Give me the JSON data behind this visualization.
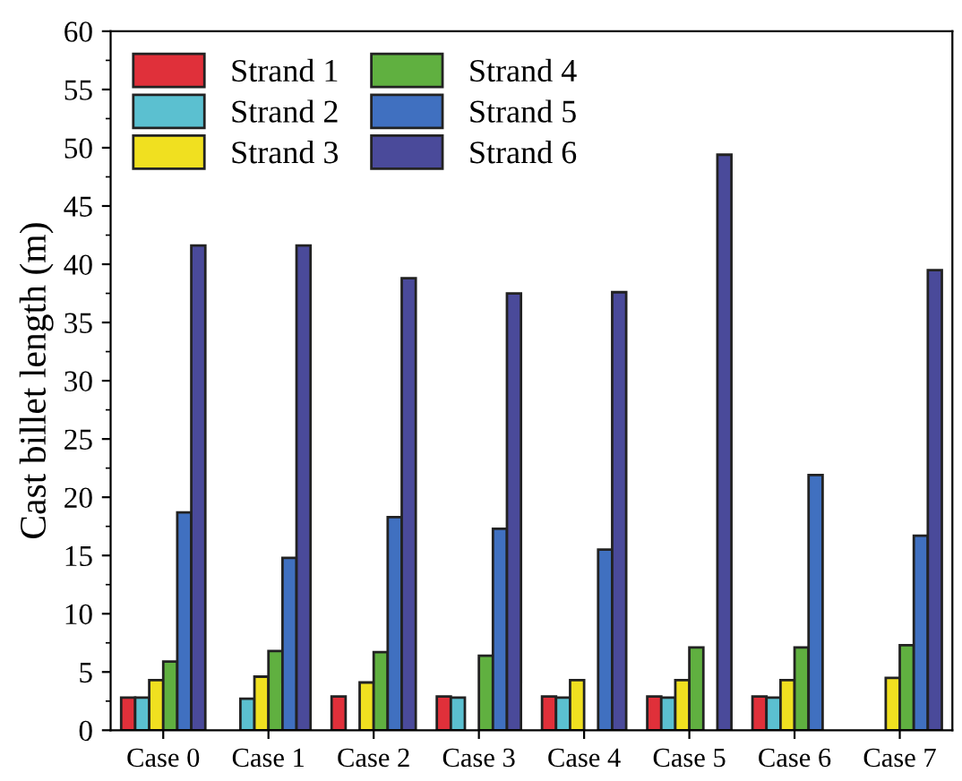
{
  "chart_data": {
    "type": "bar",
    "ylabel": "Cast billet length (m)",
    "categories": [
      "Case 0",
      "Case 1",
      "Case 2",
      "Case 3",
      "Case 4",
      "Case 5",
      "Case 6",
      "Case 7"
    ],
    "series": [
      {
        "name": "Strand 1",
        "color": "#e0303a",
        "values": [
          2.8,
          null,
          2.9,
          2.9,
          2.9,
          2.9,
          2.9,
          null
        ]
      },
      {
        "name": "Strand 2",
        "color": "#5bc0d0",
        "values": [
          2.8,
          2.7,
          null,
          2.8,
          2.8,
          2.8,
          2.8,
          null
        ]
      },
      {
        "name": "Strand 3",
        "color": "#f0e020",
        "values": [
          4.3,
          4.6,
          4.1,
          null,
          4.3,
          4.3,
          4.3,
          4.5
        ]
      },
      {
        "name": "Strand 4",
        "color": "#60b040",
        "values": [
          5.9,
          6.8,
          6.7,
          6.4,
          null,
          7.1,
          7.1,
          7.3
        ]
      },
      {
        "name": "Strand 5",
        "color": "#4070c0",
        "values": [
          18.7,
          14.8,
          18.3,
          17.3,
          15.5,
          null,
          21.9,
          16.7
        ]
      },
      {
        "name": "Strand 6",
        "color": "#4a4a9a",
        "values": [
          41.6,
          41.6,
          38.8,
          37.5,
          37.6,
          49.4,
          null,
          39.5
        ]
      }
    ],
    "ylim": [
      0,
      60
    ],
    "yticks": [
      0,
      5,
      10,
      15,
      20,
      25,
      30,
      35,
      40,
      45,
      50,
      55,
      60
    ],
    "legend": "top left",
    "grid": false
  }
}
